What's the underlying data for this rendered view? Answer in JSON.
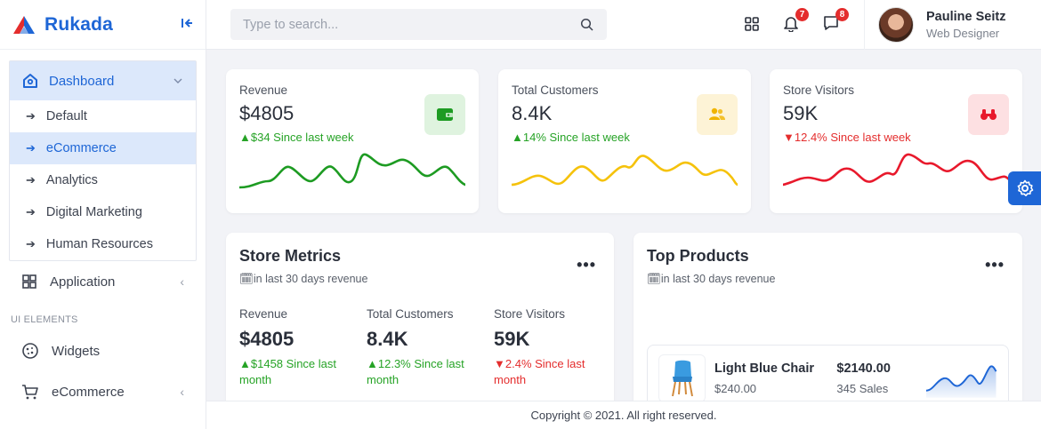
{
  "app": {
    "name": "Rukada"
  },
  "sidebar": {
    "dashboard": {
      "label": "Dashboard",
      "items": [
        {
          "label": "Default"
        },
        {
          "label": "eCommerce"
        },
        {
          "label": "Analytics"
        },
        {
          "label": "Digital Marketing"
        },
        {
          "label": "Human Resources"
        }
      ]
    },
    "application": {
      "label": "Application"
    },
    "section_label": "UI ELEMENTS",
    "widgets": {
      "label": "Widgets"
    },
    "ecommerce": {
      "label": "eCommerce"
    }
  },
  "topbar": {
    "search_placeholder": "Type to search...",
    "notifications_count": "7",
    "messages_count": "8",
    "user": {
      "name": "Pauline Seitz",
      "role": "Web Designer"
    }
  },
  "stats": [
    {
      "title": "Revenue",
      "value": "$4805",
      "arrow": "▲",
      "change": "$34 Since last week",
      "trend": "up",
      "color": "#26a326",
      "icon": "wallet-icon"
    },
    {
      "title": "Total Customers",
      "value": "8.4K",
      "arrow": "▲",
      "change": "14% Since last week",
      "trend": "up",
      "color": "#f5c20b",
      "icon": "users-icon"
    },
    {
      "title": "Store Visitors",
      "value": "59K",
      "arrow": "▼",
      "change": "12.4% Since last week",
      "trend": "down",
      "color": "#e8192c",
      "icon": "binoculars-icon"
    }
  ],
  "store_metrics": {
    "title": "Store Metrics",
    "subtitle": "in last 30 days revenue",
    "metrics": [
      {
        "title": "Revenue",
        "value": "$4805",
        "arrow": "▲",
        "change": "$1458 Since last month",
        "trend": "up"
      },
      {
        "title": "Total Customers",
        "value": "8.4K",
        "arrow": "▲",
        "change": "12.3% Since last month",
        "trend": "up"
      },
      {
        "title": "Store Visitors",
        "value": "59K",
        "arrow": "▼",
        "change": "2.4% Since last month",
        "trend": "down"
      }
    ]
  },
  "top_products": {
    "title": "Top Products",
    "subtitle": "in last 30 days revenue",
    "products": [
      {
        "name": "Light Blue Chair",
        "price": "$240.00",
        "revenue": "$2140.00",
        "sales": "345 Sales"
      }
    ]
  },
  "footer": {
    "text": "Copyright © 2021. All right reserved."
  }
}
